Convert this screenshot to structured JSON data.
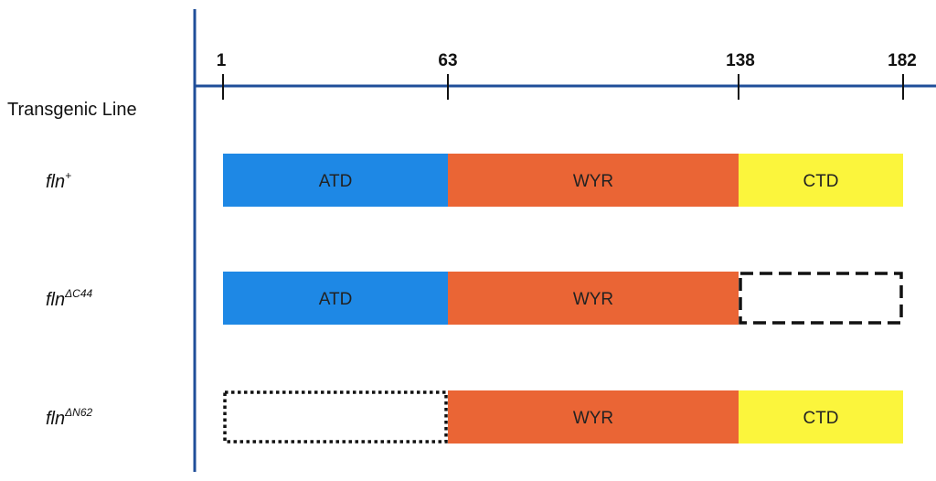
{
  "header": {
    "label": "Transgenic Line"
  },
  "axis": {
    "ticks": [
      "1",
      "63",
      "138",
      "182"
    ]
  },
  "colors": {
    "axis": "#1f4e99",
    "ATD": "#1e88e5",
    "WYR": "#ea6535",
    "CTD": "#fbf53c"
  },
  "rows": [
    {
      "base": "fln",
      "sup": "+",
      "segments": [
        {
          "label": "ATD",
          "style": "filled"
        },
        {
          "label": "WYR",
          "style": "filled"
        },
        {
          "label": "CTD",
          "style": "filled"
        }
      ]
    },
    {
      "base": "fln",
      "sup": "ΔC44",
      "segments": [
        {
          "label": "ATD",
          "style": "filled"
        },
        {
          "label": "WYR",
          "style": "filled"
        },
        {
          "label": "",
          "style": "dashed"
        }
      ]
    },
    {
      "base": "fln",
      "sup": "ΔN62",
      "segments": [
        {
          "label": "",
          "style": "dotted"
        },
        {
          "label": "WYR",
          "style": "filled"
        },
        {
          "label": "CTD",
          "style": "filled"
        }
      ]
    }
  ]
}
